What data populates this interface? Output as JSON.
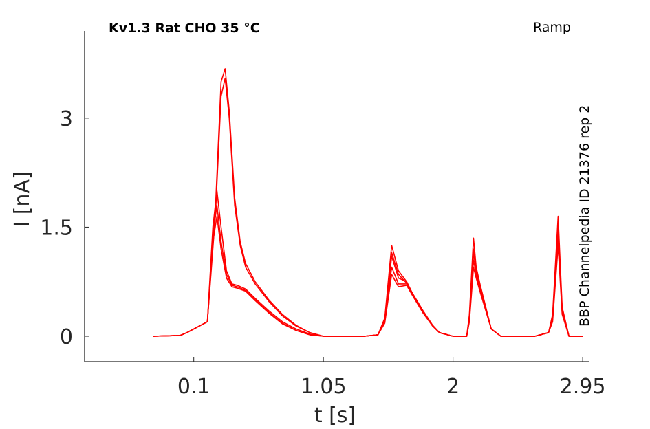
{
  "chart_data": {
    "type": "line",
    "title": "Kv1.3  Rat  CHO  35 °C",
    "subtitle": "Ramp",
    "annotation": "BBP Channelpedia ID 21376 rep 2",
    "xlabel": "t [s]",
    "ylabel": "I [nA]",
    "xlim": [
      -0.7,
      3.0
    ],
    "ylim": [
      -0.35,
      4.2
    ],
    "xticks": [
      0.1,
      1.05,
      2,
      2.95
    ],
    "xtick_labels": [
      "0.1",
      "1.05",
      "2",
      "2.95"
    ],
    "yticks": [
      0,
      1.5,
      3
    ],
    "ytick_labels": [
      "0",
      "1.5",
      "3"
    ],
    "grid": false,
    "legend": "none",
    "color": "#ff0000",
    "series": [
      {
        "x": [
          -0.2,
          0.0,
          0.05,
          0.1,
          0.2,
          0.26,
          0.3,
          0.33,
          0.36,
          0.4,
          0.44,
          0.48,
          0.55,
          0.65,
          0.75,
          0.85,
          0.95,
          1.05,
          1.2,
          1.35,
          1.45,
          1.5,
          1.55,
          1.6,
          1.66,
          1.7,
          1.78,
          1.85,
          1.9,
          2.0,
          2.1,
          2.12,
          2.15,
          2.17,
          2.2,
          2.28,
          2.35,
          2.4,
          2.5,
          2.6,
          2.7,
          2.73,
          2.77,
          2.8,
          2.85,
          2.95
        ],
        "y": [
          0.0,
          0.01,
          0.05,
          0.1,
          0.2,
          1.8,
          3.5,
          3.68,
          3.1,
          1.9,
          1.3,
          1.0,
          0.75,
          0.5,
          0.3,
          0.15,
          0.05,
          0.0,
          0.0,
          0.0,
          0.02,
          0.25,
          1.25,
          0.9,
          0.75,
          0.6,
          0.35,
          0.15,
          0.05,
          0.0,
          0.0,
          0.3,
          1.35,
          0.95,
          0.7,
          0.1,
          0.0,
          0.0,
          0.0,
          0.0,
          0.05,
          0.3,
          1.65,
          0.4,
          0.0,
          0.0
        ]
      },
      {
        "x": [
          -0.2,
          0.0,
          0.05,
          0.1,
          0.2,
          0.24,
          0.27,
          0.3,
          0.34,
          0.38,
          0.42,
          0.48,
          0.55,
          0.65,
          0.75,
          0.85,
          0.95,
          1.05,
          1.2,
          1.35,
          1.45,
          1.5,
          1.55,
          1.6,
          1.66,
          1.7,
          1.78,
          1.85,
          1.9,
          2.0,
          2.1,
          2.12,
          2.15,
          2.17,
          2.2,
          2.28,
          2.35,
          2.4,
          2.5,
          2.6,
          2.7,
          2.73,
          2.77,
          2.8,
          2.85,
          2.95
        ],
        "y": [
          0.0,
          0.01,
          0.05,
          0.1,
          0.2,
          1.5,
          2.0,
          1.5,
          0.9,
          0.72,
          0.7,
          0.65,
          0.52,
          0.35,
          0.2,
          0.1,
          0.03,
          0.0,
          0.0,
          0.0,
          0.02,
          0.2,
          1.1,
          0.8,
          0.75,
          0.6,
          0.35,
          0.15,
          0.05,
          0.0,
          0.0,
          0.25,
          1.15,
          0.9,
          0.65,
          0.1,
          0.0,
          0.0,
          0.0,
          0.0,
          0.05,
          0.25,
          1.45,
          0.35,
          0.0,
          0.0
        ]
      },
      {
        "x": [
          -0.2,
          0.0,
          0.05,
          0.1,
          0.2,
          0.24,
          0.27,
          0.3,
          0.34,
          0.38,
          0.42,
          0.48,
          0.55,
          0.65,
          0.75,
          0.85,
          0.95,
          1.05,
          1.2,
          1.35,
          1.45,
          1.5,
          1.55,
          1.6,
          1.66,
          1.7,
          1.78,
          1.85,
          1.9,
          2.0,
          2.1,
          2.12,
          2.15,
          2.17,
          2.2,
          2.28,
          2.35,
          2.4,
          2.5,
          2.6,
          2.7,
          2.73,
          2.77,
          2.8,
          2.85,
          2.95
        ],
        "y": [
          0.0,
          0.01,
          0.05,
          0.1,
          0.2,
          1.4,
          1.8,
          1.3,
          0.85,
          0.7,
          0.68,
          0.63,
          0.5,
          0.33,
          0.18,
          0.08,
          0.02,
          0.0,
          0.0,
          0.0,
          0.02,
          0.2,
          0.95,
          0.72,
          0.72,
          0.58,
          0.33,
          0.14,
          0.05,
          0.0,
          0.0,
          0.22,
          1.05,
          0.85,
          0.62,
          0.1,
          0.0,
          0.0,
          0.0,
          0.0,
          0.05,
          0.22,
          1.35,
          0.33,
          0.0,
          0.0
        ]
      },
      {
        "x": [
          -0.2,
          0.0,
          0.05,
          0.1,
          0.2,
          0.24,
          0.27,
          0.3,
          0.34,
          0.38,
          0.42,
          0.48,
          0.55,
          0.65,
          0.75,
          0.85,
          0.95,
          1.05,
          1.2,
          1.35,
          1.45,
          1.5,
          1.55,
          1.6,
          1.66,
          1.7,
          1.78,
          1.85,
          1.9,
          2.0,
          2.1,
          2.12,
          2.15,
          2.17,
          2.2,
          2.28,
          2.35,
          2.4,
          2.5,
          2.6,
          2.7,
          2.73,
          2.77,
          2.8,
          2.85,
          2.95
        ],
        "y": [
          0.0,
          0.01,
          0.05,
          0.1,
          0.2,
          1.3,
          1.65,
          1.2,
          0.8,
          0.68,
          0.66,
          0.62,
          0.49,
          0.32,
          0.17,
          0.08,
          0.02,
          0.0,
          0.0,
          0.0,
          0.02,
          0.18,
          0.85,
          0.68,
          0.7,
          0.57,
          0.32,
          0.14,
          0.05,
          0.0,
          0.0,
          0.2,
          0.95,
          0.8,
          0.6,
          0.1,
          0.0,
          0.0,
          0.0,
          0.0,
          0.05,
          0.2,
          1.25,
          0.3,
          0.0,
          0.0
        ]
      },
      {
        "x": [
          -0.2,
          0.0,
          0.05,
          0.1,
          0.2,
          0.26,
          0.3,
          0.33,
          0.36,
          0.4,
          0.44,
          0.48,
          0.55,
          0.65,
          0.75,
          0.85,
          0.95,
          1.05,
          1.2,
          1.35,
          1.45,
          1.5,
          1.55,
          1.6,
          1.66,
          1.7,
          1.78,
          1.85,
          1.9,
          2.0,
          2.1,
          2.12,
          2.15,
          2.17,
          2.2,
          2.28,
          2.35,
          2.4,
          2.5,
          2.6,
          2.7,
          2.73,
          2.77,
          2.8,
          2.85,
          2.95
        ],
        "y": [
          0.0,
          0.01,
          0.05,
          0.1,
          0.2,
          1.7,
          3.3,
          3.55,
          3.0,
          1.8,
          1.25,
          0.95,
          0.72,
          0.48,
          0.28,
          0.14,
          0.05,
          0.0,
          0.0,
          0.0,
          0.02,
          0.22,
          1.15,
          0.85,
          0.73,
          0.58,
          0.34,
          0.15,
          0.05,
          0.0,
          0.0,
          0.27,
          1.2,
          0.9,
          0.67,
          0.1,
          0.0,
          0.0,
          0.0,
          0.0,
          0.05,
          0.27,
          1.5,
          0.37,
          0.0,
          0.0
        ]
      }
    ]
  }
}
